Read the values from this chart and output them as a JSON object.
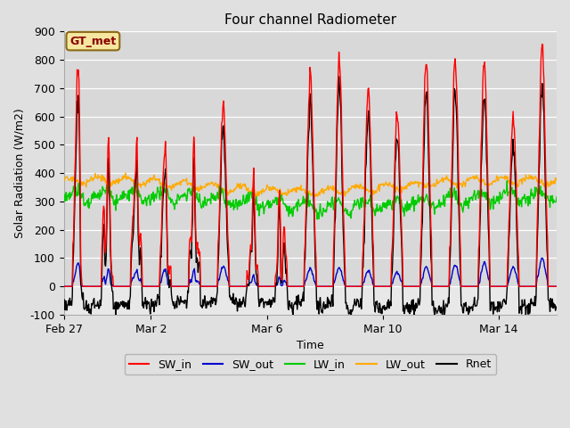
{
  "title": "Four channel Radiometer",
  "xlabel": "Time",
  "ylabel": "Solar Radiation (W/m2)",
  "ylim": [
    -100,
    900
  ],
  "n_days": 17,
  "fig_bg": "#e0e0e0",
  "plot_bg": "#e8e8e8",
  "upper_band_bg": "#d8d8d8",
  "grid_color": "#ffffff",
  "annotation_text": "GT_met",
  "annotation_fg": "#8b0000",
  "annotation_bg": "#f5e6a0",
  "annotation_border": "#8b6914",
  "series": {
    "SW_in": {
      "color": "#ff0000",
      "lw": 1.0
    },
    "SW_out": {
      "color": "#0000cc",
      "lw": 1.0
    },
    "LW_in": {
      "color": "#00cc00",
      "lw": 1.0
    },
    "LW_out": {
      "color": "#ffaa00",
      "lw": 1.0
    },
    "Rnet": {
      "color": "#000000",
      "lw": 1.0
    }
  },
  "xtick_labels": [
    "Feb 27",
    "Mar 2",
    "Mar 6",
    "Mar 10",
    "Mar 14"
  ],
  "xtick_positions": [
    0,
    3,
    7,
    11,
    15
  ],
  "ytick_values": [
    -100,
    0,
    100,
    200,
    300,
    400,
    500,
    600,
    700,
    800,
    900
  ],
  "figsize": [
    6.4,
    4.8
  ],
  "dpi": 100,
  "legend_dash_color_SW_in": "#ff0000",
  "legend_dash_color_SW_out": "#0000cc",
  "legend_dash_color_LW_in": "#00cc00",
  "legend_dash_color_LW_out": "#ffaa00",
  "legend_dash_color_Rnet": "#000000"
}
